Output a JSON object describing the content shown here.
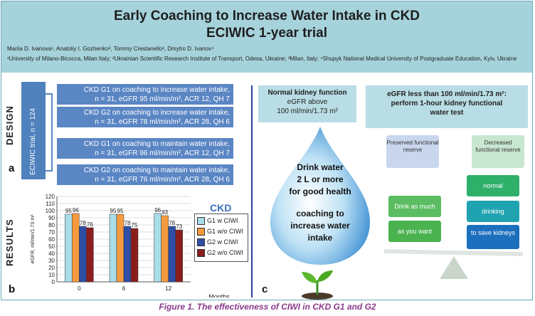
{
  "header": {
    "title_line1": "Early Coaching to Increase Water Intake in CKD",
    "title_line2": "ECIWIC 1-year trial",
    "authors": "Mariia D. Ivanova¹, Anatoliy I. Gozhenko², Tommy Crestanello³, Dmytro D. Ivanov⁴",
    "affiliations": "¹University of Milano-Bicocca, Milan Italy; ²Ukrainian Scientific Research Institute of Transport, Odesa, Ukraine; ³Milan, Italy; ⁴Shupyk National Medical University of Postgraduate Education, Kyiv, Ukraine"
  },
  "panel_a": {
    "section_label": "DESIGN",
    "letter": "a",
    "trial_label": "ECIWIC trial, n = 124",
    "boxes": [
      {
        "line1": "CKD G1 on coaching to increase water intake,",
        "line2": "n = 31, eGFR 95 ml/min/m², ACR 12, QH 7"
      },
      {
        "line1": "CKD G2 on coaching to increase water intake,",
        "line2": "n = 31, eGFR 78 ml/min/m², ACR 28, QH 6"
      },
      {
        "line1": "CKD G1 on coaching to maintain water intake,",
        "line2": "n = 31, eGFR 96 ml/min/m², ACR 12, QH 7"
      },
      {
        "line1": "CKD G2 on coaching to maintain water intake,",
        "line2": "n = 31, eGFR 76 ml/min/m², ACR 28, QH 6"
      }
    ]
  },
  "panel_b": {
    "section_label": "RESULTS",
    "letter": "b",
    "legend_title": "CKD"
  },
  "chart_data": {
    "type": "bar",
    "categories": [
      "0",
      "6",
      "12"
    ],
    "xlabel": "Months",
    "ylabel": "eGFR, ml/min/1.73 m²",
    "ylim": [
      0,
      120
    ],
    "yticks": [
      0,
      10,
      20,
      30,
      40,
      50,
      60,
      70,
      80,
      90,
      100,
      110,
      120
    ],
    "grid": true,
    "legend_position": "right",
    "series": [
      {
        "name": "G1 w CIWI",
        "values": [
          95,
          95,
          96
        ],
        "color": "#a9dde9"
      },
      {
        "name": "G1 w/o CIWI",
        "values": [
          96,
          95,
          93
        ],
        "color": "#f79a3e"
      },
      {
        "name": "G2 w CIWI",
        "values": [
          78,
          78,
          78
        ],
        "color": "#2e4fa5"
      },
      {
        "name": "G2 w/o CIWI",
        "values": [
          76,
          75,
          73
        ],
        "color": "#8b1d1d"
      }
    ]
  },
  "panel_c": {
    "letter": "c",
    "normal_title": "Normal kidney function",
    "normal_line2": "eGFR above",
    "normal_line3": "100 ml/min/1.73 m²",
    "egfr_line1": "eGFR less than 100 ml/min/1.73 m²:",
    "egfr_line2": "perform 1-hour kidney functional",
    "egfr_line3": "water test",
    "drop_line1": "Drink water",
    "drop_line2": "2 L or more",
    "drop_line3": "for good health",
    "drop_line4": "coaching to",
    "drop_line5": "increase water",
    "drop_line6": "intake",
    "preserved": "Preserved functional reserve",
    "decreased": "Decreased functional reserve",
    "left_block1": "Drink as much",
    "left_block2": "as you want",
    "right_block1": "normal",
    "right_block2": "drinking",
    "right_block3": "to save kidneys"
  },
  "caption": "Figure 1. The effectiveness of CIWI in CKD G1 and G2"
}
